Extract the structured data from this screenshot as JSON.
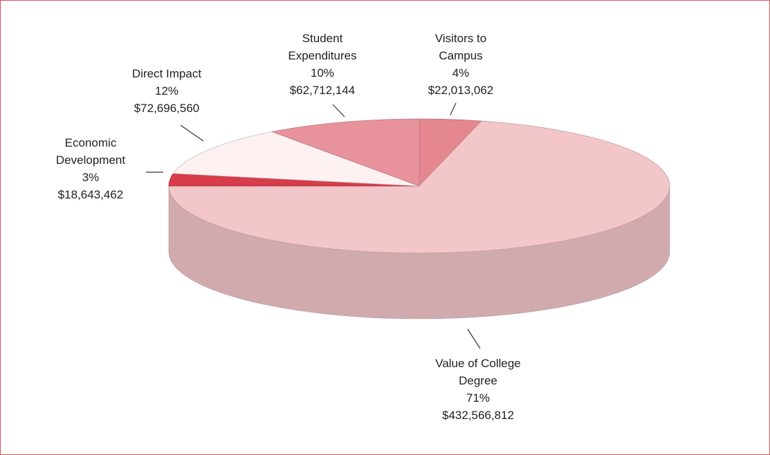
{
  "chart_data": {
    "type": "pie3d",
    "categories": [
      "Visitors to Campus",
      "Value of College Degree",
      "Economic Development",
      "Direct Impact",
      "Student Expenditures"
    ],
    "values": [
      4,
      71,
      3,
      12,
      10
    ],
    "value_labels": [
      "4%",
      "71%",
      "3%",
      "12%",
      "10%"
    ],
    "amounts": [
      22013062,
      432566812,
      18643462,
      72696560,
      62712144
    ],
    "amount_labels": [
      "$22,013,062",
      "$432,566,812",
      "$18,643,462",
      "$72,696,560",
      "$62,712,144"
    ],
    "colors": [
      "#e5878f",
      "#f3c6ca",
      "#d63c4a",
      "#fdf1f1",
      "#e8939b"
    ]
  }
}
